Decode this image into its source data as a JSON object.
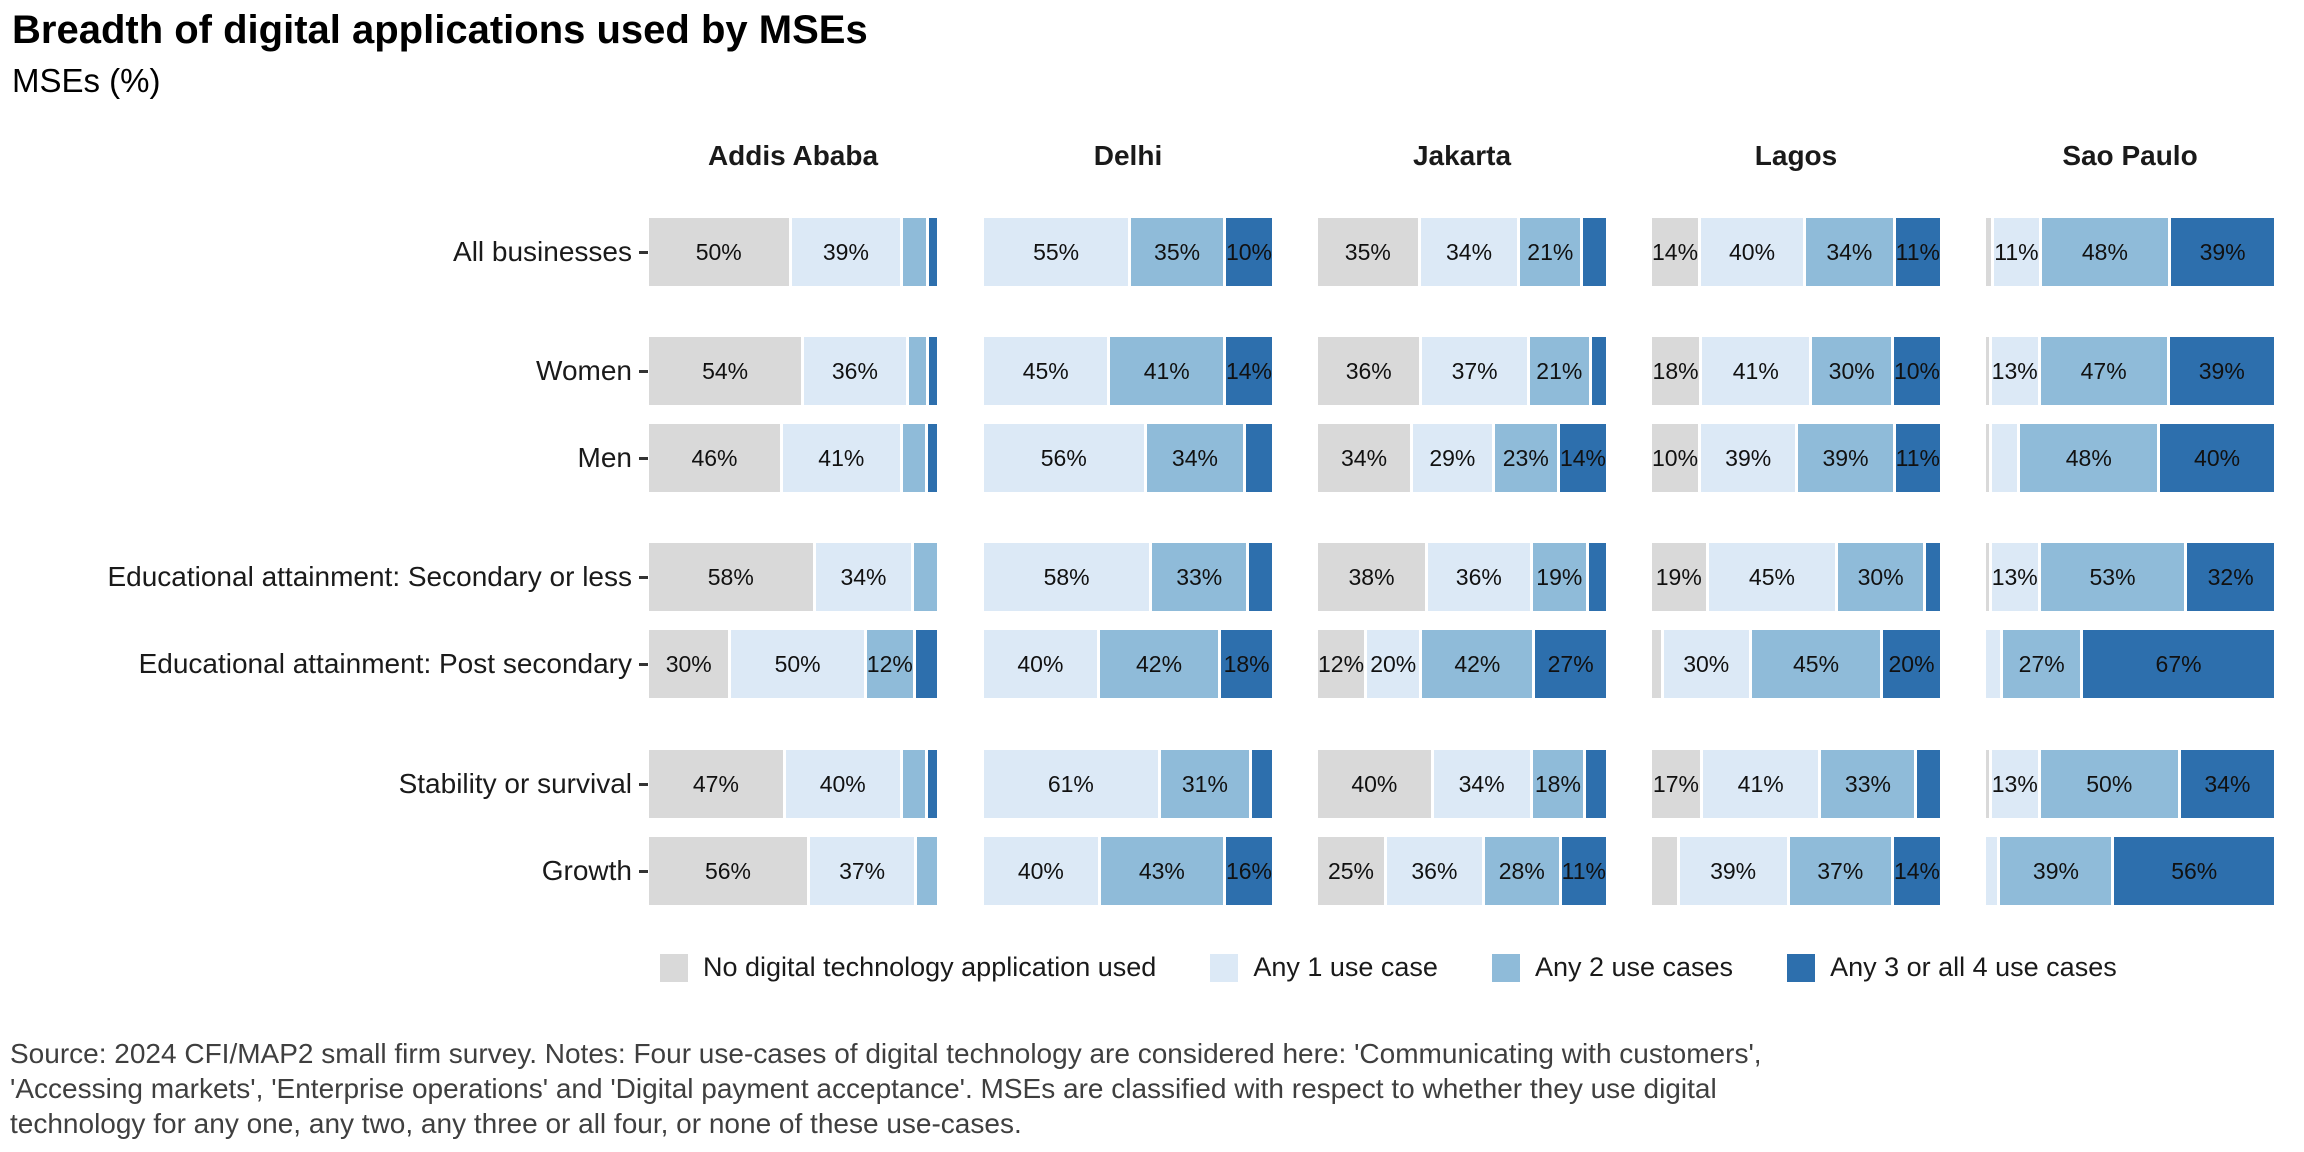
{
  "title": "Breadth of digital applications used by MSEs",
  "subtitle": "MSEs (%)",
  "chart_data": {
    "type": "bar",
    "stacked": true,
    "orientation": "horizontal",
    "unit": "%",
    "axis": "100% stacked, no visible numeric axis, labels printed inside segments when value >= 10",
    "facets": [
      "Addis Ababa",
      "Delhi",
      "Jakarta",
      "Lagos",
      "Sao Paulo"
    ],
    "categories": [
      "All businesses",
      "Women",
      "Men",
      "Educational attainment: Secondary or less",
      "Educational attainment: Post secondary",
      "Stability or survival",
      "Growth"
    ],
    "category_groups": [
      [
        0
      ],
      [
        1,
        2
      ],
      [
        3,
        4
      ],
      [
        5,
        6
      ]
    ],
    "series": [
      {
        "name": "No digital technology application used",
        "color": "#d9d9d9"
      },
      {
        "name": "Any 1 use case",
        "color": "#dce9f6"
      },
      {
        "name": "Any 2 use cases",
        "color": "#8fbbd9"
      },
      {
        "name": "Any 3 or all 4 use cases",
        "color": "#2d6fad"
      }
    ],
    "label_min_value": 10,
    "values_by_facet": [
      [
        [
          50,
          39,
          8,
          3
        ],
        [
          54,
          36,
          6,
          3
        ],
        [
          46,
          41,
          8,
          3
        ],
        [
          58,
          34,
          8,
          0
        ],
        [
          30,
          50,
          12,
          8
        ],
        [
          47,
          40,
          8,
          3
        ],
        [
          56,
          37,
          7,
          0
        ]
      ],
      [
        [
          0,
          55,
          35,
          10
        ],
        [
          0,
          45,
          41,
          14
        ],
        [
          0,
          56,
          34,
          9
        ],
        [
          0,
          58,
          33,
          8
        ],
        [
          0,
          40,
          42,
          18
        ],
        [
          0,
          61,
          31,
          7
        ],
        [
          0,
          40,
          43,
          16
        ]
      ],
      [
        [
          35,
          34,
          21,
          8
        ],
        [
          36,
          37,
          21,
          5
        ],
        [
          34,
          29,
          23,
          14
        ],
        [
          38,
          36,
          19,
          6
        ],
        [
          12,
          20,
          42,
          27
        ],
        [
          40,
          34,
          18,
          7
        ],
        [
          25,
          36,
          28,
          11
        ]
      ],
      [
        [
          14,
          40,
          34,
          11
        ],
        [
          18,
          41,
          30,
          10
        ],
        [
          10,
          39,
          39,
          11
        ],
        [
          19,
          45,
          30,
          5
        ],
        [
          3,
          30,
          45,
          20
        ],
        [
          17,
          41,
          33,
          8
        ],
        [
          9,
          39,
          37,
          14
        ]
      ],
      [
        [
          2,
          11,
          48,
          39
        ],
        [
          1,
          13,
          47,
          39
        ],
        [
          1,
          9,
          48,
          40
        ],
        [
          1,
          13,
          53,
          32
        ],
        [
          0,
          5,
          27,
          67
        ],
        [
          1,
          13,
          50,
          34
        ],
        [
          0,
          4,
          39,
          56
        ]
      ]
    ]
  },
  "legend": {
    "items": [
      {
        "label": "No digital technology application used",
        "color": "#d9d9d9"
      },
      {
        "label": "Any 1 use case",
        "color": "#dce9f6"
      },
      {
        "label": "Any 2 use cases",
        "color": "#8fbbd9"
      },
      {
        "label": "Any 3 or all 4 use cases",
        "color": "#2d6fad"
      }
    ]
  },
  "caption_lines": [
    "Source: 2024 CFI/MAP2 small firm survey. Notes: Four use-cases of digital technology are considered here: 'Communicating with customers',",
    "'Accessing markets', 'Enterprise operations' and 'Digital payment acceptance'. MSEs are classified with respect to whether they use digital",
    "technology for any one, any two, any three or all four, or none of these use-cases."
  ]
}
